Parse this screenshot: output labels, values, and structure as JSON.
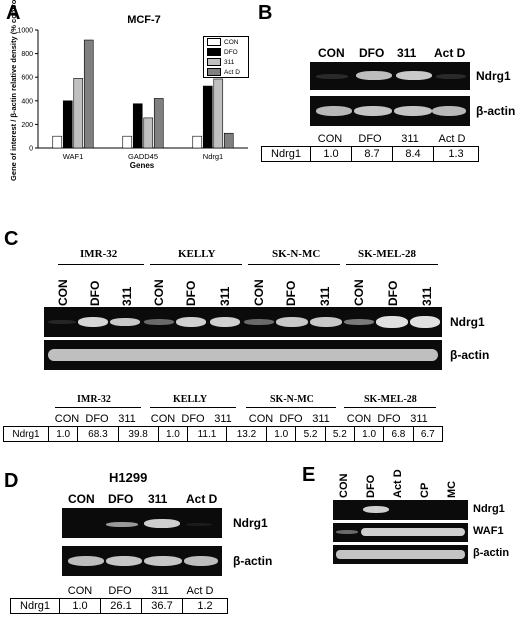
{
  "panel_a": {
    "letter": "A",
    "chart_data": {
      "type": "bar",
      "title": "MCF-7",
      "xlabel": "Genes",
      "ylabel": "Gene of interest / β-actin relative density (% control)",
      "categories": [
        "WAF1",
        "GADD45",
        "Ndrg1"
      ],
      "yticks": [
        0,
        200,
        400,
        600,
        800,
        1000
      ],
      "ylim": [
        0,
        1000
      ],
      "legend_position": "top-right",
      "series": [
        {
          "name": "CON",
          "color": "#ffffff",
          "values": [
            100,
            100,
            100
          ]
        },
        {
          "name": "DFO",
          "color": "#000000",
          "values": [
            400,
            375,
            525
          ]
        },
        {
          "name": "311",
          "color": "#c0c0c0",
          "values": [
            590,
            255,
            585
          ]
        },
        {
          "name": "Act D",
          "color": "#808080",
          "values": [
            915,
            420,
            125
          ]
        }
      ]
    }
  },
  "panel_b": {
    "letter": "B",
    "lanes": [
      "CON",
      "DFO",
      "311",
      "Act D"
    ],
    "row_labels": [
      "Ndrg1",
      "β-actin"
    ],
    "table_head": [
      "CON",
      "DFO",
      "311",
      "Act D"
    ],
    "table_row": [
      "Ndrg1",
      "1.0",
      "8.7",
      "8.4",
      "1.3"
    ]
  },
  "panel_c": {
    "letter": "C",
    "groups": [
      "IMR-32",
      "KELLY",
      "SK-N-MC",
      "SK-MEL-28"
    ],
    "lanes": [
      "CON",
      "DFO",
      "311"
    ],
    "row_labels": [
      "Ndrg1",
      "β-actin"
    ],
    "table_sub": [
      "CON",
      "DFO",
      "311"
    ],
    "table_row": [
      "Ndrg1",
      "1.0",
      "68.3",
      "39.8",
      "1.0",
      "11.1",
      "13.2",
      "1.0",
      "5.2",
      "5.2",
      "1.0",
      "6.8",
      "6.7"
    ]
  },
  "panel_d": {
    "letter": "D",
    "title": "H1299",
    "lanes": [
      "CON",
      "DFO",
      "311",
      "Act D"
    ],
    "row_labels": [
      "Ndrg1",
      "β-actin"
    ],
    "table_head": [
      "CON",
      "DFO",
      "311",
      "Act D"
    ],
    "table_row": [
      "Ndrg1",
      "1.0",
      "26.1",
      "36.7",
      "1.2"
    ]
  },
  "panel_e": {
    "letter": "E",
    "lanes": [
      "CON",
      "DFO",
      "Act D",
      "CP",
      "MC"
    ],
    "row_labels": [
      "Ndrg1",
      "WAF1",
      "β-actin"
    ]
  }
}
